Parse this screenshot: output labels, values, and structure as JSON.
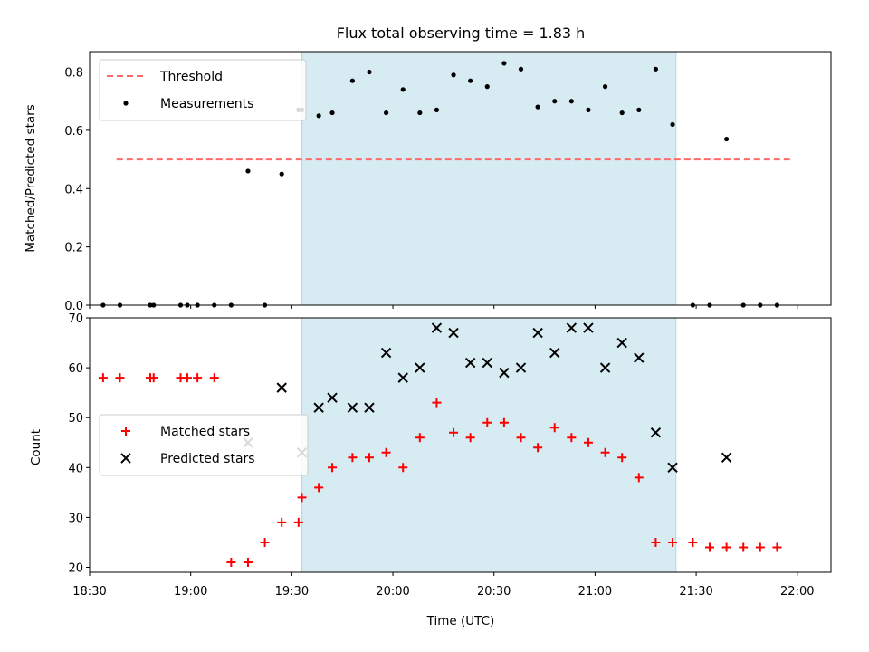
{
  "chart_data": [
    {
      "type": "scatter",
      "title": "Flux total observing time = 1.83 h",
      "xlabel": "",
      "ylabel": "Matched/Predicted stars",
      "xlim_min": [
        1110,
        1330
      ],
      "ylim": [
        0,
        0.87
      ],
      "yticks": [
        0,
        0.2,
        0.4,
        0.6,
        0.8
      ],
      "ytick_labels": [
        "0.0",
        "0.2",
        "0.4",
        "0.6",
        "0.8"
      ],
      "shaded_x_min": [
        1173,
        1284
      ],
      "legend_position": "upper left",
      "threshold": {
        "name": "Threshold",
        "value": 0.5,
        "x_min": [
          1118,
          1318
        ],
        "color": "#ff6b6b"
      },
      "series": [
        {
          "name": "Measurements",
          "color": "#000000",
          "x_min": [
            1114,
            1119,
            1128,
            1129,
            1137,
            1139,
            1142,
            1147,
            1152,
            1157,
            1162,
            1167,
            1172,
            1173,
            1178,
            1182,
            1188,
            1193,
            1198,
            1203,
            1208,
            1213,
            1218,
            1223,
            1228,
            1233,
            1238,
            1243,
            1248,
            1253,
            1258,
            1263,
            1268,
            1273,
            1278,
            1283,
            1289,
            1294,
            1299,
            1304,
            1309,
            1314
          ],
          "y": [
            0,
            0,
            0,
            0,
            0,
            0,
            0,
            0,
            0,
            0.46,
            0,
            0.45,
            0.67,
            0.67,
            0.65,
            0.66,
            0.77,
            0.8,
            0.66,
            0.74,
            0.66,
            0.67,
            0.79,
            0.77,
            0.75,
            0.83,
            0.81,
            0.68,
            0.7,
            0.7,
            0.67,
            0.75,
            0.66,
            0.67,
            0.81,
            0.62,
            0,
            0,
            0.57,
            0,
            0,
            0
          ]
        }
      ]
    },
    {
      "type": "scatter",
      "xlabel": "Time (UTC)",
      "ylabel": "Count",
      "xlim_min": [
        1110,
        1330
      ],
      "ylim": [
        19,
        70
      ],
      "yticks": [
        20,
        30,
        40,
        50,
        60,
        70
      ],
      "ytick_labels": [
        "20",
        "30",
        "40",
        "50",
        "60",
        "70"
      ],
      "xticks_min": [
        1110,
        1140,
        1170,
        1200,
        1230,
        1260,
        1290,
        1320
      ],
      "xtick_labels": [
        "18:30",
        "19:00",
        "19:30",
        "20:00",
        "20:30",
        "21:00",
        "21:30",
        "22:00"
      ],
      "shaded_x_min": [
        1173,
        1284
      ],
      "legend_position": "center left",
      "series": [
        {
          "name": "Matched stars",
          "marker": "plus",
          "color": "#ff0000",
          "x_min": [
            1114,
            1119,
            1128,
            1129,
            1137,
            1139,
            1142,
            1147,
            1152,
            1157,
            1162,
            1167,
            1172,
            1173,
            1178,
            1182,
            1188,
            1193,
            1198,
            1203,
            1208,
            1213,
            1218,
            1223,
            1228,
            1233,
            1238,
            1243,
            1248,
            1253,
            1258,
            1263,
            1268,
            1273,
            1278,
            1283,
            1289,
            1294,
            1299,
            1304,
            1309,
            1314
          ],
          "y": [
            58,
            58,
            58,
            58,
            58,
            58,
            58,
            58,
            21,
            21,
            25,
            29,
            29,
            34,
            36,
            40,
            42,
            42,
            43,
            40,
            46,
            53,
            47,
            46,
            49,
            49,
            46,
            44,
            48,
            46,
            45,
            43,
            42,
            38,
            25,
            25,
            25,
            24,
            24,
            24,
            24,
            24
          ]
        },
        {
          "name": "Predicted stars",
          "marker": "x",
          "color": "#000000",
          "x_min": [
            1157,
            1167,
            1173,
            1178,
            1182,
            1188,
            1193,
            1198,
            1203,
            1208,
            1213,
            1218,
            1223,
            1228,
            1233,
            1238,
            1243,
            1248,
            1253,
            1258,
            1263,
            1268,
            1273,
            1278,
            1283,
            1299
          ],
          "y": [
            45,
            56,
            43,
            52,
            54,
            52,
            52,
            63,
            58,
            60,
            68,
            67,
            61,
            61,
            59,
            60,
            67,
            63,
            68,
            68,
            60,
            65,
            62,
            47,
            40,
            42
          ]
        }
      ]
    }
  ]
}
